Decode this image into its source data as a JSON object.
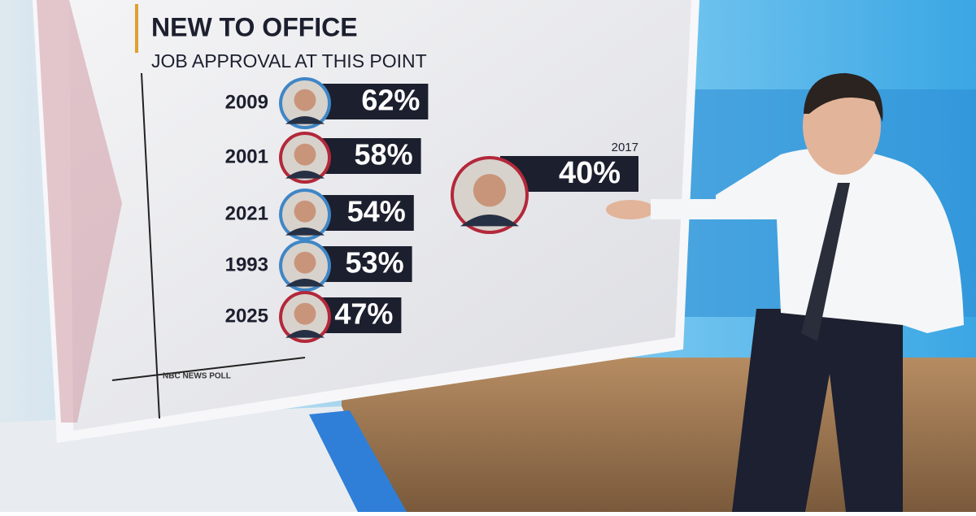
{
  "chart_data": {
    "type": "bar",
    "title": "NEW TO OFFICE",
    "subtitle": "JOB APPROVAL AT THIS POINT",
    "categories": [
      "2009",
      "2001",
      "2021",
      "1993",
      "2025"
    ],
    "values": [
      62,
      58,
      54,
      53,
      47
    ],
    "value_labels": [
      "62%",
      "58%",
      "54%",
      "53%",
      "47%"
    ],
    "ring_colors": [
      "#3f86c6",
      "#b3283a",
      "#3f86c6",
      "#3f86c6",
      "#b3283a"
    ],
    "highlight": {
      "category": "2017",
      "value": 40,
      "value_label": "40%",
      "ring_color": "#b3283a"
    },
    "bar_color": "#1c1f2e",
    "source": "NBC NEWS POLL"
  }
}
